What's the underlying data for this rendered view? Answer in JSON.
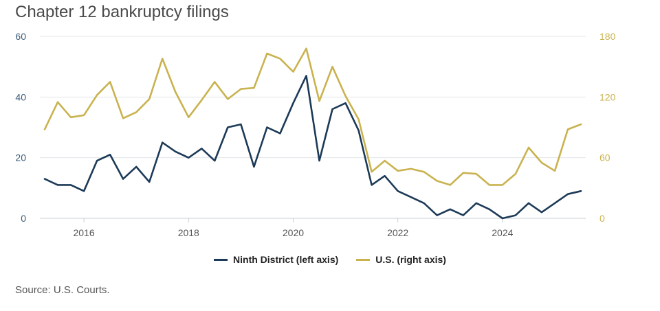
{
  "colors": {
    "ninth": "#1c3a57",
    "us": "#c9b24f",
    "grid": "#e2e6ea",
    "axis": "#3b5b78",
    "tick": "#555555"
  },
  "header": {
    "title": "Chapter 12 bankruptcy filings"
  },
  "footer": {
    "source": "Source: U.S. Courts."
  },
  "chart_data": {
    "type": "line",
    "title": "Chapter 12 bankruptcy filings",
    "x": [
      "2015Q2",
      "2015Q3",
      "2015Q4",
      "2016Q1",
      "2016Q2",
      "2016Q3",
      "2016Q4",
      "2017Q1",
      "2017Q2",
      "2017Q3",
      "2017Q4",
      "2018Q1",
      "2018Q2",
      "2018Q3",
      "2018Q4",
      "2019Q1",
      "2019Q2",
      "2019Q3",
      "2019Q4",
      "2020Q1",
      "2020Q2",
      "2020Q3",
      "2020Q4",
      "2021Q1",
      "2021Q2",
      "2021Q3",
      "2021Q4",
      "2022Q1",
      "2022Q2",
      "2022Q3",
      "2022Q4",
      "2023Q1",
      "2023Q2",
      "2023Q3",
      "2023Q4",
      "2024Q1",
      "2024Q2",
      "2024Q3",
      "2024Q4",
      "2025Q1",
      "2025Q2",
      "2025Q3"
    ],
    "x_ticks": [
      "2016",
      "2018",
      "2020",
      "2022",
      "2024"
    ],
    "y_left": {
      "label": "",
      "ticks": [
        0,
        20,
        40,
        60
      ],
      "range": [
        0,
        60
      ]
    },
    "y_right": {
      "label": "",
      "ticks": [
        0,
        60,
        120,
        180
      ],
      "range": [
        0,
        180
      ]
    },
    "grid": true,
    "legend_position": "bottom-center",
    "series": [
      {
        "name": "Ninth District (left axis)",
        "axis": "left",
        "values": [
          13,
          11,
          11,
          9,
          19,
          21,
          13,
          17,
          12,
          25,
          22,
          20,
          23,
          19,
          30,
          31,
          17,
          30,
          28,
          38,
          47,
          19,
          36,
          38,
          29,
          11,
          14,
          9,
          7,
          5,
          1,
          3,
          1,
          5,
          3,
          0,
          1,
          5,
          2,
          5,
          8,
          9
        ]
      },
      {
        "name": "U.S. (right axis)",
        "axis": "right",
        "values": [
          88,
          115,
          100,
          102,
          122,
          135,
          99,
          105,
          118,
          158,
          125,
          100,
          117,
          135,
          118,
          128,
          129,
          163,
          158,
          145,
          168,
          116,
          150,
          121,
          98,
          46,
          57,
          47,
          49,
          46,
          37,
          33,
          45,
          44,
          33,
          33,
          44,
          70,
          55,
          47,
          88,
          93
        ]
      }
    ]
  }
}
